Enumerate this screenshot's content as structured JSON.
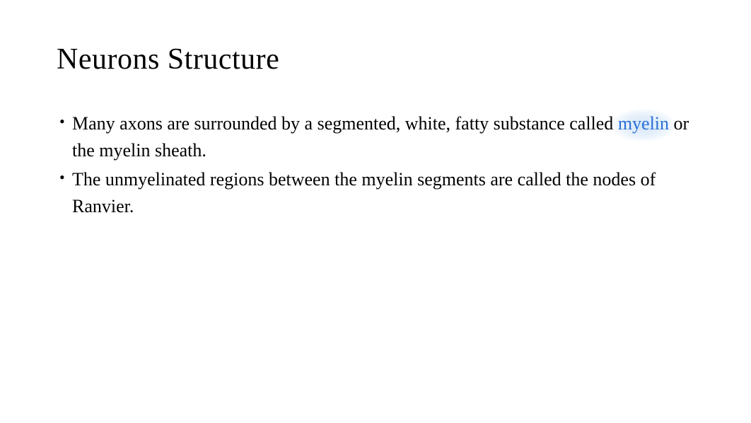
{
  "slide": {
    "title": "Neurons Structure",
    "title_fontsize": 42,
    "title_color": "#000000",
    "background_color": "#ffffff",
    "bullets": [
      {
        "pre_text": "Many axons are surrounded by a segmented, white, fatty substance called ",
        "highlighted": "myelin",
        "post_text": " or the myelin sheath."
      },
      {
        "pre_text": "The unmyelinated regions between the myelin segments are called the nodes of Ranvier.",
        "highlighted": "",
        "post_text": ""
      }
    ],
    "bullet_fontsize": 26,
    "bullet_color": "#000000",
    "highlight_text_color": "#2a6fd6",
    "highlight_glow_color": "#adcef0"
  }
}
